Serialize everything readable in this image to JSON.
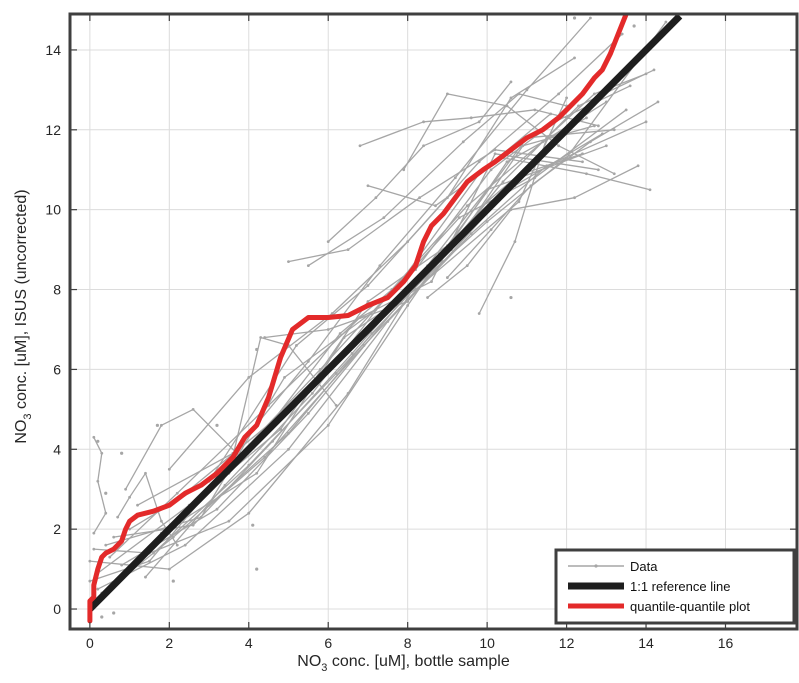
{
  "chart_data": {
    "type": "line",
    "xlabel": {
      "main": "NO",
      "sub": "3",
      "rest": " conc. [uM], bottle sample"
    },
    "ylabel": {
      "main": "NO",
      "sub": "3",
      "rest": " conc. [uM], ISUS (uncorrected)"
    },
    "xlim": [
      -0.5,
      17.8
    ],
    "ylim": [
      -0.5,
      14.9
    ],
    "xticks": [
      "0",
      "2",
      "4",
      "6",
      "8",
      "10",
      "12",
      "14",
      "16"
    ],
    "yticks": [
      "0",
      "2",
      "4",
      "6",
      "8",
      "10",
      "12",
      "14"
    ],
    "grid": true,
    "legend_position": "bottom-right",
    "series": [
      {
        "name": "Data",
        "color": "#a6a6a6",
        "kind": "profiles",
        "profiles": [
          [
            [
              0.1,
              1.5
            ],
            [
              1.5,
              1.4
            ],
            [
              3.5,
              2.2
            ],
            [
              6.0,
              4.6
            ],
            [
              8.0,
              7.6
            ],
            [
              10.5,
              11.2
            ],
            [
              12.5,
              12.3
            ]
          ],
          [
            [
              0.0,
              1.2
            ],
            [
              2.0,
              1.0
            ],
            [
              4.0,
              2.4
            ],
            [
              6.5,
              5.4
            ],
            [
              8.5,
              8.6
            ],
            [
              10.0,
              10.5
            ],
            [
              13.0,
              11.6
            ]
          ],
          [
            [
              0.3,
              0.4
            ],
            [
              1.8,
              1.9
            ],
            [
              4.2,
              3.4
            ],
            [
              6.4,
              6.8
            ],
            [
              8.2,
              8.0
            ],
            [
              10.8,
              10.2
            ],
            [
              12.0,
              12.8
            ]
          ],
          [
            [
              0.2,
              0.9
            ],
            [
              2.5,
              2.6
            ],
            [
              4.8,
              4.5
            ],
            [
              7.0,
              7.7
            ],
            [
              9.0,
              9.1
            ],
            [
              11.0,
              11.8
            ],
            [
              13.2,
              12.0
            ]
          ],
          [
            [
              0.5,
              1.3
            ],
            [
              2.2,
              2.9
            ],
            [
              4.5,
              5.1
            ],
            [
              6.8,
              7.3
            ],
            [
              8.6,
              8.2
            ],
            [
              10.2,
              11.4
            ],
            [
              12.8,
              11.0
            ]
          ],
          [
            [
              0.0,
              0.7
            ],
            [
              1.5,
              1.2
            ],
            [
              3.8,
              3.9
            ],
            [
              5.8,
              6.0
            ],
            [
              7.9,
              8.3
            ],
            [
              9.8,
              10.9
            ],
            [
              11.6,
              12.4
            ]
          ],
          [
            [
              0.4,
              1.6
            ],
            [
              2.8,
              2.3
            ],
            [
              4.9,
              5.8
            ],
            [
              7.2,
              7.5
            ],
            [
              9.3,
              9.8
            ],
            [
              11.2,
              10.8
            ],
            [
              13.5,
              12.5
            ]
          ],
          [
            [
              0.2,
              0.5
            ],
            [
              2.4,
              1.6
            ],
            [
              5.0,
              4.0
            ],
            [
              7.5,
              7.2
            ],
            [
              9.6,
              9.4
            ],
            [
              11.5,
              11.1
            ],
            [
              14.0,
              12.2
            ]
          ],
          [
            [
              1.0,
              2.0
            ],
            [
              3.0,
              3.2
            ],
            [
              5.2,
              6.6
            ],
            [
              7.0,
              8.1
            ],
            [
              9.0,
              10.3
            ],
            [
              10.6,
              12.8
            ],
            [
              12.2,
              13.8
            ]
          ],
          [
            [
              0.8,
              1.1
            ],
            [
              3.2,
              2.5
            ],
            [
              5.5,
              4.9
            ],
            [
              8.0,
              7.9
            ],
            [
              10.0,
              9.7
            ],
            [
              12.0,
              11.3
            ],
            [
              14.5,
              14.7
            ]
          ],
          [
            [
              1.2,
              2.6
            ],
            [
              3.6,
              3.9
            ],
            [
              5.5,
              6.2
            ],
            [
              7.3,
              8.6
            ],
            [
              9.2,
              10.8
            ],
            [
              11.0,
              13.0
            ],
            [
              12.6,
              14.8
            ]
          ],
          [
            [
              0.6,
              1.8
            ],
            [
              2.6,
              2.1
            ],
            [
              4.6,
              4.2
            ],
            [
              6.6,
              6.4
            ],
            [
              8.8,
              8.9
            ],
            [
              10.7,
              10.6
            ],
            [
              12.9,
              11.9
            ]
          ],
          [
            [
              1.6,
              1.4
            ],
            [
              4.0,
              3.6
            ],
            [
              6.2,
              5.9
            ],
            [
              8.4,
              8.3
            ],
            [
              10.4,
              10.7
            ],
            [
              12.3,
              12.6
            ],
            [
              14.2,
              13.5
            ]
          ],
          [
            [
              2.0,
              3.5
            ],
            [
              4.0,
              5.8
            ],
            [
              6.1,
              7.4
            ],
            [
              8.0,
              9.2
            ],
            [
              9.8,
              11.2
            ],
            [
              11.8,
              12.9
            ],
            [
              13.4,
              14.4
            ]
          ],
          [
            [
              0.1,
              0.2
            ],
            [
              2.1,
              1.8
            ],
            [
              4.4,
              3.8
            ],
            [
              6.9,
              6.6
            ],
            [
              8.9,
              8.7
            ],
            [
              10.9,
              10.9
            ],
            [
              12.4,
              11.4
            ]
          ],
          [
            [
              3.0,
              2.6
            ],
            [
              5.0,
              4.4
            ],
            [
              7.1,
              6.9
            ],
            [
              9.1,
              9.0
            ],
            [
              10.9,
              11.6
            ],
            [
              12.7,
              12.1
            ]
          ],
          [
            [
              1.4,
              0.8
            ],
            [
              3.4,
              3.1
            ],
            [
              5.6,
              5.4
            ],
            [
              7.6,
              8.0
            ],
            [
              9.5,
              10.1
            ],
            [
              11.4,
              11.7
            ],
            [
              13.0,
              12.7
            ]
          ],
          [
            [
              2.4,
              2.9
            ],
            [
              4.6,
              4.7
            ],
            [
              6.3,
              6.9
            ],
            [
              8.2,
              8.5
            ],
            [
              10.1,
              11.0
            ],
            [
              11.7,
              12.2
            ],
            [
              13.6,
              13.1
            ]
          ],
          [
            [
              4.4,
              6.8
            ],
            [
              6.0,
              7.0
            ],
            [
              8.0,
              7.7
            ],
            [
              10.0,
              10.2
            ],
            [
              12.0,
              11.9
            ]
          ],
          [
            [
              5.0,
              8.7
            ],
            [
              6.5,
              9.0
            ],
            [
              8.3,
              10.3
            ],
            [
              10.2,
              11.5
            ],
            [
              12.4,
              11.2
            ]
          ],
          [
            [
              5.5,
              8.6
            ],
            [
              7.4,
              9.8
            ],
            [
              9.4,
              11.7
            ],
            [
              10.8,
              12.9
            ],
            [
              12.0,
              12.6
            ]
          ],
          [
            [
              6.8,
              11.6
            ],
            [
              8.4,
              12.2
            ],
            [
              9.6,
              12.3
            ],
            [
              11.2,
              12.5
            ],
            [
              12.8,
              12.1
            ]
          ],
          [
            [
              7.0,
              10.6
            ],
            [
              8.7,
              10.1
            ],
            [
              10.4,
              11.3
            ],
            [
              12.5,
              10.9
            ],
            [
              14.1,
              10.5
            ]
          ],
          [
            [
              7.9,
              11.0
            ],
            [
              9.0,
              12.9
            ],
            [
              10.5,
              12.6
            ],
            [
              11.8,
              11.6
            ],
            [
              13.2,
              10.9
            ]
          ],
          [
            [
              8.5,
              7.8
            ],
            [
              9.5,
              8.6
            ],
            [
              10.6,
              10.0
            ],
            [
              12.2,
              10.3
            ],
            [
              13.8,
              11.1
            ]
          ],
          [
            [
              9.0,
              8.3
            ],
            [
              10.1,
              9.5
            ],
            [
              11.1,
              10.6
            ],
            [
              12.6,
              11.7
            ],
            [
              14.3,
              12.7
            ]
          ],
          [
            [
              9.8,
              7.4
            ],
            [
              10.7,
              9.2
            ],
            [
              11.5,
              11.8
            ],
            [
              12.7,
              12.9
            ],
            [
              14.0,
              13.4
            ]
          ],
          [
            [
              6.0,
              9.2
            ],
            [
              7.2,
              10.3
            ],
            [
              8.4,
              11.6
            ],
            [
              9.8,
              12.2
            ],
            [
              10.6,
              13.2
            ]
          ],
          [
            [
              0.7,
              2.3
            ],
            [
              1.0,
              2.8
            ],
            [
              1.4,
              3.4
            ],
            [
              1.8,
              2.2
            ],
            [
              2.2,
              1.6
            ]
          ],
          [
            [
              0.1,
              4.3
            ],
            [
              0.3,
              3.9
            ],
            [
              0.2,
              3.2
            ],
            [
              0.4,
              2.4
            ],
            [
              0.1,
              1.9
            ]
          ],
          [
            [
              0.9,
              3.0
            ],
            [
              1.8,
              4.6
            ],
            [
              2.6,
              5.0
            ],
            [
              3.8,
              3.8
            ]
          ],
          [
            [
              3.5,
              3.4
            ],
            [
              4.3,
              6.8
            ],
            [
              5.0,
              6.6
            ],
            [
              6.2,
              5.1
            ]
          ]
        ],
        "points": [
          [
            4.2,
            1.0
          ],
          [
            1.7,
            4.6
          ],
          [
            3.2,
            4.6
          ],
          [
            0.8,
            3.9
          ],
          [
            0.2,
            4.2
          ],
          [
            4.2,
            6.5
          ],
          [
            10.6,
            7.8
          ],
          [
            12.2,
            14.8
          ],
          [
            13.7,
            14.6
          ],
          [
            0.3,
            -0.2
          ],
          [
            0.6,
            -0.1
          ],
          [
            4.1,
            2.1
          ],
          [
            2.1,
            0.7
          ],
          [
            0.4,
            2.9
          ]
        ]
      },
      {
        "name": "1:1 reference line",
        "color": "#1e1e1e",
        "x": [
          0,
          14.85
        ],
        "y": [
          0,
          14.85
        ]
      },
      {
        "name": "quantile-quantile plot",
        "color": "#e32a2a",
        "x": [
          0.0,
          0.0,
          0.1,
          0.1,
          0.2,
          0.3,
          0.4,
          0.6,
          0.8,
          0.9,
          1.0,
          1.2,
          1.6,
          2.0,
          2.4,
          2.8,
          3.2,
          3.6,
          3.9,
          4.2,
          4.5,
          4.8,
          5.1,
          5.5,
          6.0,
          6.5,
          7.0,
          7.5,
          7.9,
          8.2,
          8.4,
          8.6,
          8.9,
          9.2,
          9.5,
          9.9,
          10.2,
          10.6,
          11.0,
          11.4,
          11.8,
          12.1,
          12.4,
          12.7,
          12.9,
          13.1,
          13.3,
          13.5
        ],
        "y": [
          -0.3,
          0.2,
          0.3,
          0.6,
          1.0,
          1.3,
          1.4,
          1.5,
          1.7,
          2.0,
          2.2,
          2.35,
          2.45,
          2.6,
          2.9,
          3.1,
          3.4,
          3.8,
          4.3,
          4.6,
          5.3,
          6.3,
          7.0,
          7.3,
          7.3,
          7.35,
          7.6,
          7.8,
          8.2,
          8.6,
          9.2,
          9.6,
          9.9,
          10.3,
          10.7,
          11.0,
          11.2,
          11.5,
          11.8,
          12.0,
          12.3,
          12.6,
          12.9,
          13.3,
          13.5,
          13.9,
          14.4,
          14.9
        ]
      }
    ]
  }
}
